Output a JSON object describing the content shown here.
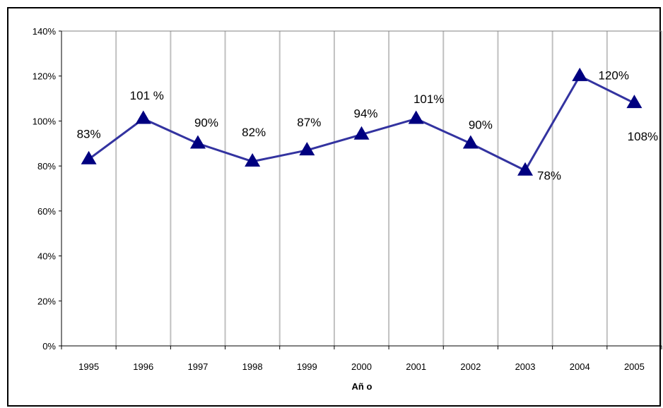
{
  "chart_data": {
    "type": "line",
    "title": "",
    "xlabel": "Añ o",
    "ylabel": "",
    "categories": [
      "1995",
      "1996",
      "1997",
      "1998",
      "1999",
      "2000",
      "2001",
      "2002",
      "2003",
      "2004",
      "2005"
    ],
    "series": [
      {
        "values": [
          83,
          101,
          90,
          82,
          87,
          94,
          101,
          90,
          78,
          120,
          108
        ],
        "labels": [
          "83%",
          "101 %",
          "90%",
          "82%",
          "87%",
          "94%",
          "101%",
          "90%",
          "78%",
          "120%",
          "108%"
        ],
        "color": "#000080",
        "marker": "triangle"
      }
    ],
    "y_ticks": [
      "0%",
      "20%",
      "40%",
      "60%",
      "80%",
      "100%",
      "120%",
      "140%"
    ],
    "ylim": [
      0,
      140
    ],
    "grid": "vertical",
    "legend": "none"
  }
}
